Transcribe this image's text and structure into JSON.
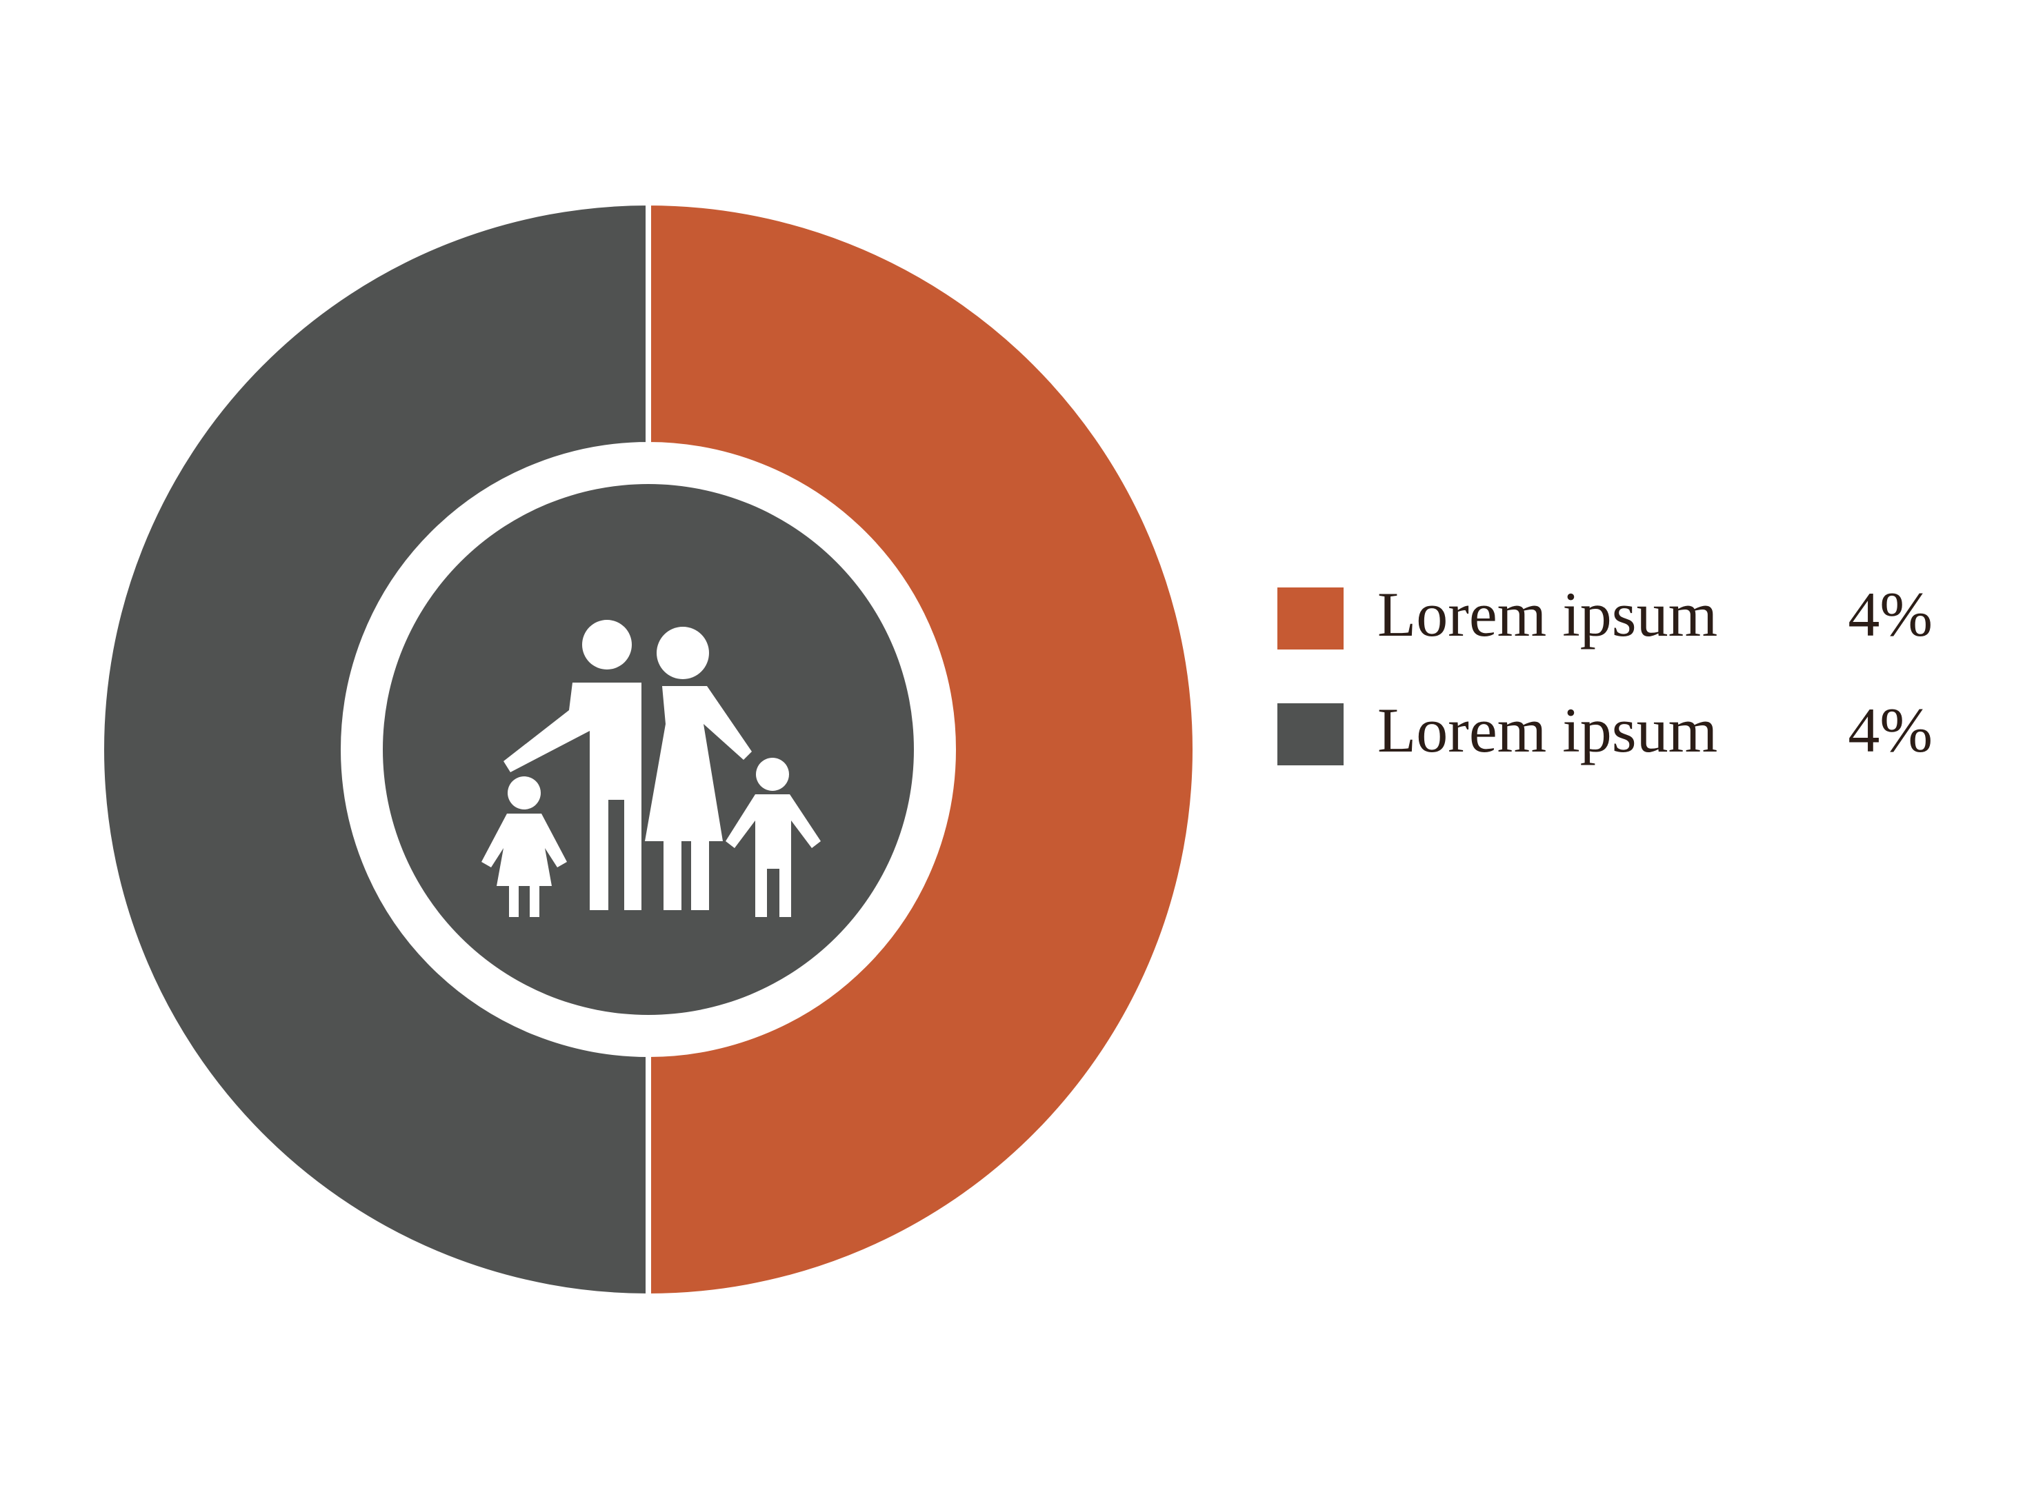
{
  "chart_data": {
    "type": "donut",
    "categories": [
      "Lorem ipsum",
      "Lorem ipsum"
    ],
    "values": [
      4,
      4
    ],
    "value_labels": [
      "4%",
      "4%"
    ],
    "colors": [
      "#c65a33",
      "#505251"
    ],
    "legend": "right"
  }
}
